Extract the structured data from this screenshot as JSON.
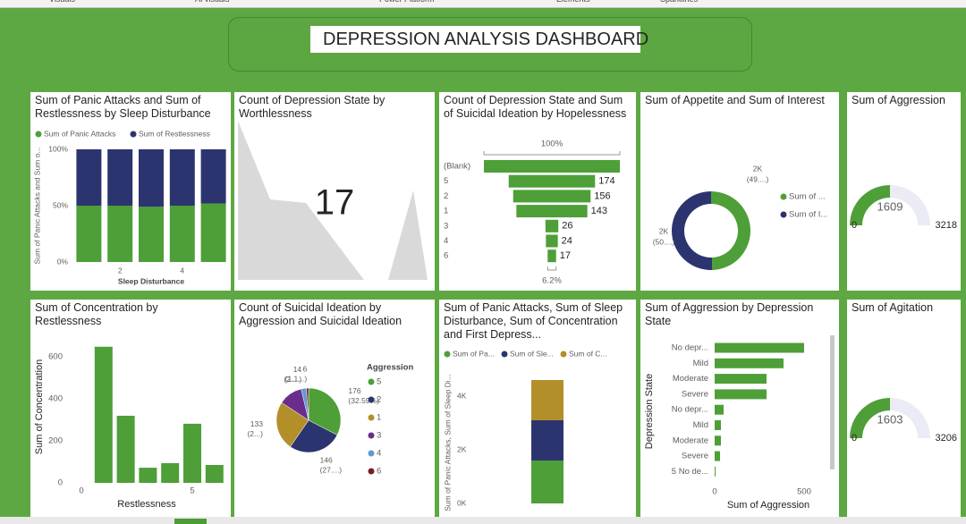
{
  "ribbon": [
    "Visuals",
    "AI visuals",
    "Power Platform",
    "Elements",
    "Sparklines"
  ],
  "dashboard_title": "DEPRESSION ANALYSIS DASHBOARD",
  "chart_data": [
    {
      "type": "stacked_bar_100",
      "title": "Sum of Panic Attacks and Sum of Restlessness by Sleep Disturbance",
      "x": [
        1,
        2,
        3,
        4,
        5
      ],
      "xlim": [
        0.5,
        5.5
      ],
      "xticks": [
        2,
        4
      ],
      "series": [
        {
          "name": "Sum of Panic Attacks",
          "color": "#4e9f38",
          "values": [
            50,
            50,
            49,
            50,
            52
          ]
        },
        {
          "name": "Sum of Restlessness",
          "color": "#2c3470",
          "values": [
            50,
            50,
            51,
            50,
            48
          ]
        }
      ],
      "ylim": [
        0,
        100
      ],
      "yticks": [
        {
          "value": 0,
          "label": "0%"
        },
        {
          "value": 50,
          "label": "50%"
        },
        {
          "value": 100,
          "label": "100%"
        }
      ],
      "y_label": "Sum of Panic Attacks and Sum o...",
      "x_label": "Sleep Disturbance"
    },
    {
      "type": "card",
      "title": "Count of Depression State by Worthlessness",
      "value": 17
    },
    {
      "type": "funnel",
      "title": "Count of Depression State and Sum of Suicidal Ideation by Hopelessness",
      "categories": [
        "(Blank)",
        "5",
        "2",
        "1",
        "3",
        "4",
        "6"
      ],
      "values": [
        274,
        174,
        156,
        143,
        26,
        24,
        17
      ],
      "value_labels": [
        null,
        "174",
        "156",
        "143",
        "26",
        "24",
        "17"
      ],
      "color": "#4e9f38",
      "top_percent_label": "100%",
      "bottom_percent_label": "6.2%"
    },
    {
      "type": "donut",
      "title": "Sum of Appetite and Sum of Interest",
      "categories": [
        "Sum of ...",
        "Sum of I..."
      ],
      "values": [
        1980,
        2020
      ],
      "value_labels": [
        "2K",
        "2K"
      ],
      "percent_labels": [
        "(49....)",
        "(50....)"
      ],
      "colors": [
        "#4e9f38",
        "#2c3470"
      ]
    },
    {
      "type": "gauge",
      "title": "Sum of Aggression",
      "value": 1609,
      "min": 0,
      "max": 3218,
      "color": "#4e9f38",
      "track_color": "#ebebf5"
    },
    {
      "type": "bar",
      "title": "Sum of Concentration by Restlessness",
      "x": [
        1,
        2,
        3,
        4,
        5,
        6
      ],
      "values": [
        647,
        319,
        72,
        94,
        281,
        85
      ],
      "color": "#4e9f38",
      "xlim": [
        -0.5,
        6.5
      ],
      "xticks": [
        0,
        5
      ],
      "ylim": [
        0,
        680
      ],
      "yticks": [
        0,
        200,
        400,
        600
      ],
      "y_label": "Sum of Concentration",
      "x_label": "Restlessness"
    },
    {
      "type": "pie",
      "title": "Count of Suicidal Ideation by Aggression and Suicidal Ideation",
      "legend_title": "Aggression",
      "categories": [
        "5",
        "2",
        "1",
        "3",
        "4",
        "6"
      ],
      "values": [
        176,
        146,
        133,
        65,
        14,
        6
      ],
      "value_labels": [
        "176",
        "146",
        "133",
        null,
        "14",
        "6"
      ],
      "percent_labels": [
        "(32.59%)",
        "(27....)",
        "(2...)",
        null,
        "(2....)",
        "(1.1...)"
      ],
      "colors": [
        "#4e9f38",
        "#2c3470",
        "#b38f2a",
        "#6b2d8c",
        "#5b9bd5",
        "#7a1e1e"
      ]
    },
    {
      "type": "stacked_column",
      "title": "Sum of Panic Attacks, Sum of Sleep Disturbance, Sum of Concentration and First Depress...",
      "categories": [
        null
      ],
      "series": [
        {
          "name": "Sum of Pa...",
          "color": "#4e9f38",
          "values": [
            1600
          ]
        },
        {
          "name": "Sum of Sle...",
          "color": "#2c3470",
          "values": [
            1500
          ]
        },
        {
          "name": "Sum of C...",
          "color": "#b38f2a",
          "values": [
            1500
          ]
        }
      ],
      "ylim": [
        0,
        4700
      ],
      "yticks": [
        {
          "value": 0,
          "label": "0K"
        },
        {
          "value": 2000,
          "label": "2K"
        },
        {
          "value": 4000,
          "label": "4K"
        }
      ],
      "y_label": "Sum of Panic Attacks, Sum of Sleep Di..."
    },
    {
      "type": "hbar",
      "title": "Sum of Aggression by Depression State",
      "categories": [
        "No depr...",
        "Mild",
        "Moderate",
        "Severe",
        "No depr...",
        "Mild",
        "Moderate",
        "Severe",
        "5 No de..."
      ],
      "values": [
        500,
        385,
        290,
        290,
        50,
        35,
        35,
        30,
        5
      ],
      "color": "#4e9f38",
      "xlim": [
        0,
        640
      ],
      "xticks": [
        0,
        500
      ],
      "y_label": "Depression State",
      "x_label": "Sum of Aggression"
    },
    {
      "type": "gauge",
      "title": "Sum of Agitation",
      "value": 1603,
      "min": 0,
      "max": 3206,
      "color": "#4e9f38",
      "track_color": "#ebebf5"
    }
  ]
}
